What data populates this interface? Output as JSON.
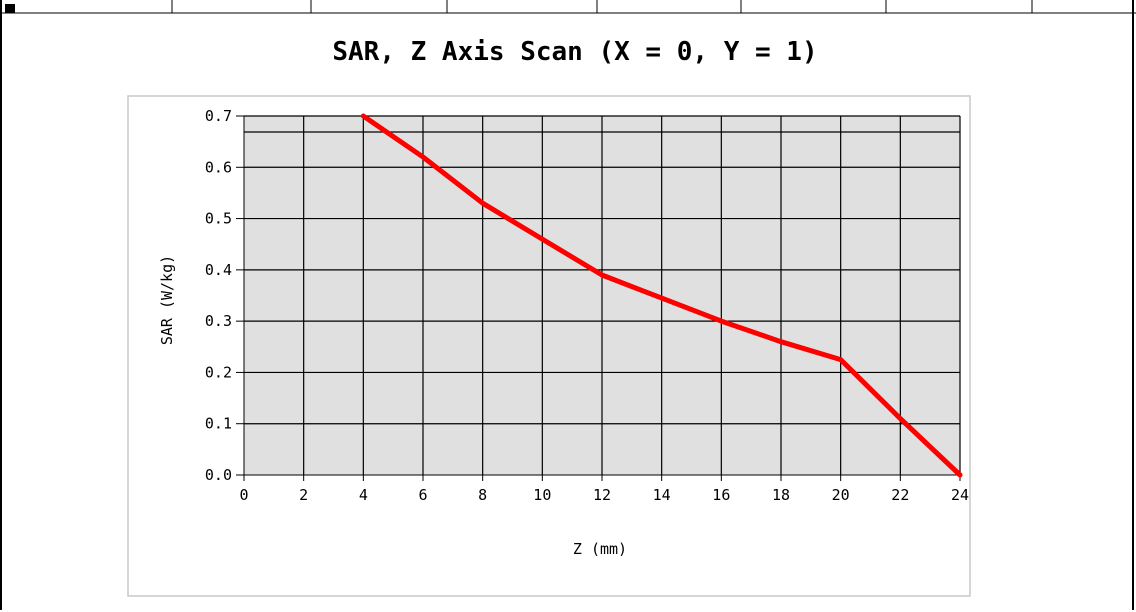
{
  "chart_data": {
    "type": "line",
    "title": "SAR, Z Axis Scan (X = 0, Y = 1)",
    "xlabel": "Z (mm)",
    "ylabel": "SAR (W/kg)",
    "xlim": [
      0,
      24
    ],
    "ylim": [
      0.0,
      0.7
    ],
    "xticks": [
      "0",
      "2",
      "4",
      "6",
      "8",
      "10",
      "12",
      "14",
      "16",
      "18",
      "20",
      "22",
      "24"
    ],
    "yticks": [
      "0.0",
      "0.1",
      "0.2",
      "0.3",
      "0.4",
      "0.5",
      "0.6",
      "0.7"
    ],
    "grid": true,
    "legend": "none",
    "series": [
      {
        "color": "#ff0000",
        "x": [
          4,
          6,
          8,
          10,
          12,
          14,
          16,
          18,
          20,
          22,
          24
        ],
        "y": [
          0.7,
          0.62,
          0.53,
          0.46,
          0.39,
          0.345,
          0.3,
          0.26,
          0.225,
          0.11,
          0.0
        ]
      }
    ],
    "colors": {
      "plot_bg": "#e0e0e0",
      "grid": "#000000",
      "line": "#ff0000"
    }
  }
}
